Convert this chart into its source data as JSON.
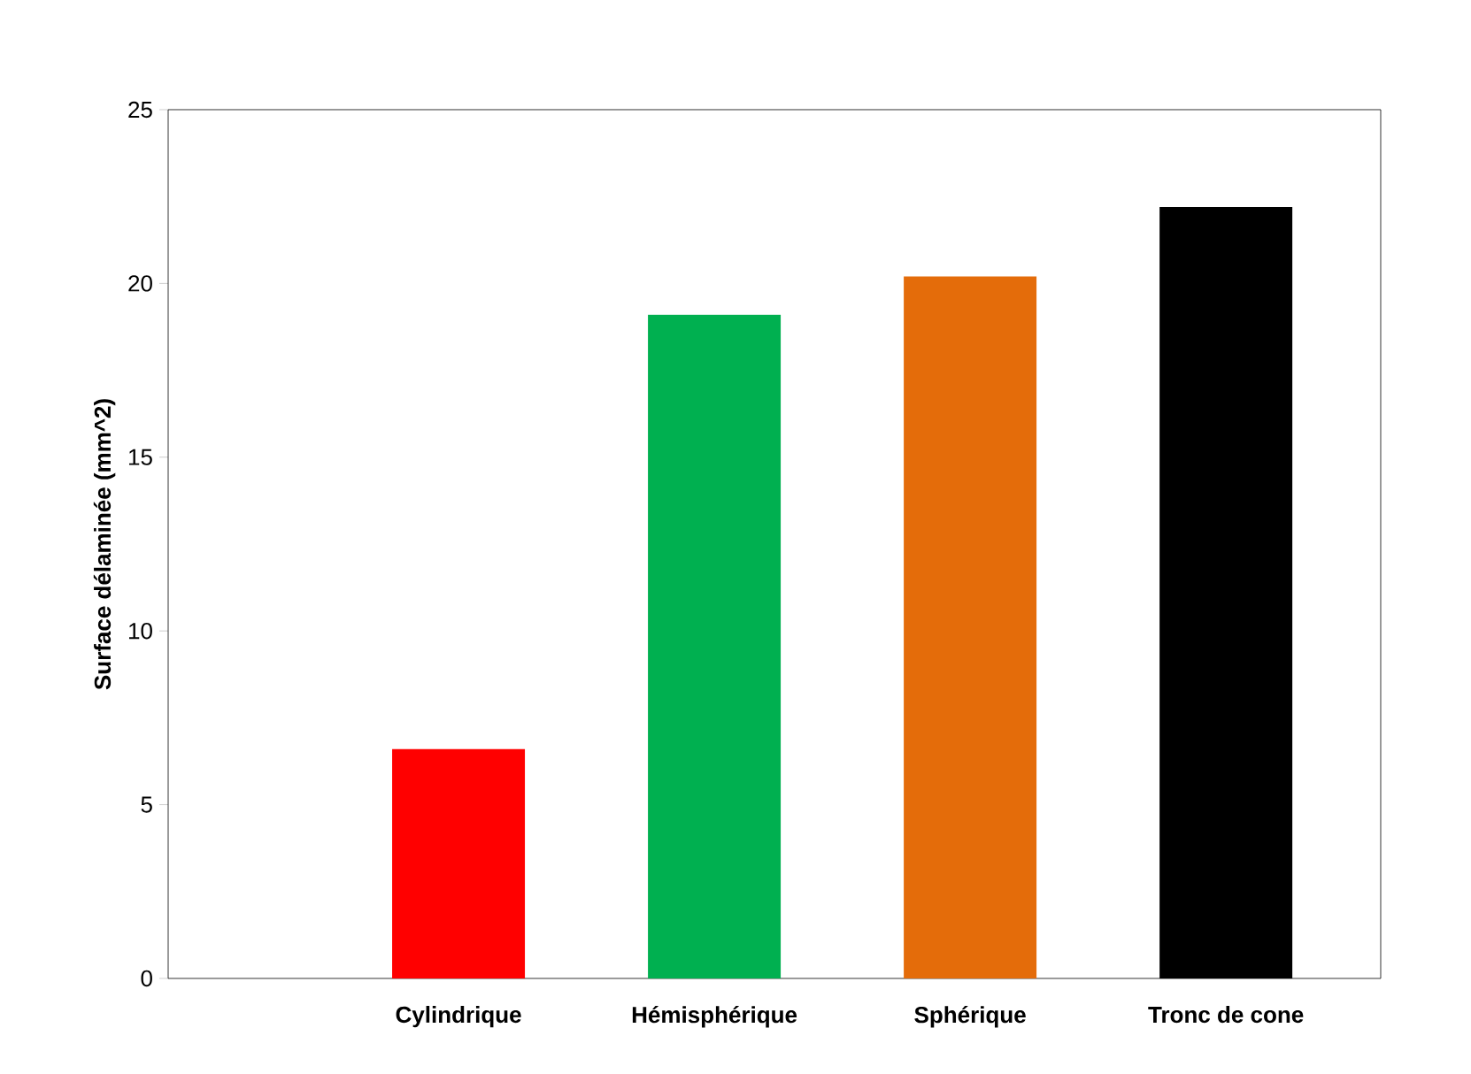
{
  "chart_data": {
    "type": "bar",
    "ylabel": "Surface délaminée (mm^2)",
    "categories": [
      "Cylindrique",
      "Hémisphérique",
      "Sphérique",
      "Tronc de cone"
    ],
    "values": [
      6.6,
      19.1,
      20.2,
      22.2
    ],
    "colors": [
      "#ff0000",
      "#00b050",
      "#e46c0a",
      "#000000"
    ],
    "ylim": [
      0,
      25
    ],
    "yticks": [
      0,
      5,
      10,
      15,
      20,
      25
    ],
    "grid": false
  }
}
